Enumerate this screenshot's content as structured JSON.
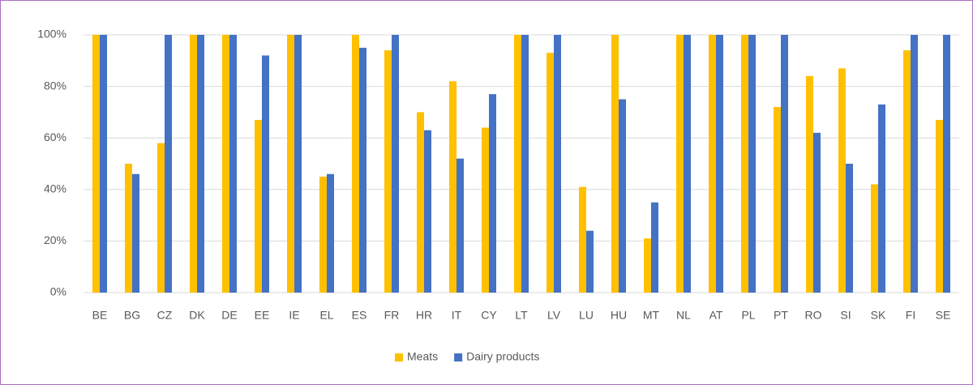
{
  "chart_data": {
    "type": "bar",
    "categories": [
      "BE",
      "BG",
      "CZ",
      "DK",
      "DE",
      "EE",
      "IE",
      "EL",
      "ES",
      "FR",
      "HR",
      "IT",
      "CY",
      "LT",
      "LV",
      "LU",
      "HU",
      "MT",
      "NL",
      "AT",
      "PL",
      "PT",
      "RO",
      "SI",
      "SK",
      "FI",
      "SE"
    ],
    "series": [
      {
        "name": "Meats",
        "color": "#ffc000",
        "values": [
          100,
          50,
          58,
          100,
          100,
          67,
          100,
          45,
          100,
          94,
          70,
          82,
          64,
          100,
          93,
          41,
          100,
          21,
          100,
          100,
          100,
          72,
          84,
          87,
          42,
          94,
          67
        ]
      },
      {
        "name": "Dairy products",
        "color": "#4472c4",
        "values": [
          100,
          46,
          100,
          100,
          100,
          92,
          100,
          46,
          95,
          100,
          63,
          52,
          77,
          100,
          100,
          24,
          75,
          35,
          100,
          100,
          100,
          100,
          62,
          50,
          73,
          100,
          100
        ]
      }
    ],
    "ylim": [
      0,
      100
    ],
    "yticks": [
      {
        "value": 0,
        "label": "0%"
      },
      {
        "value": 20,
        "label": "20%"
      },
      {
        "value": 40,
        "label": "40%"
      },
      {
        "value": 60,
        "label": "60%"
      },
      {
        "value": 80,
        "label": "80%"
      },
      {
        "value": 100,
        "label": "100%"
      }
    ],
    "grid": true,
    "legend": "bottom"
  }
}
